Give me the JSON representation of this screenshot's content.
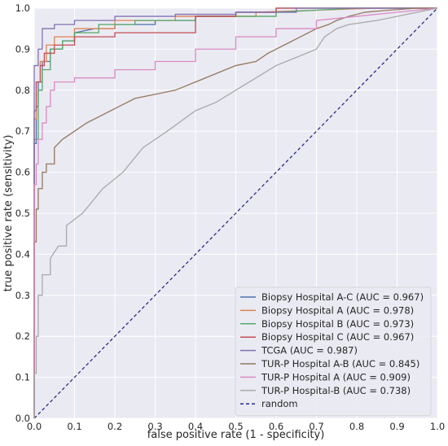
{
  "chart_data": {
    "type": "line",
    "title": "",
    "xlabel": "false positive rate (1 - specificity)",
    "ylabel": "true positive rate (sensitivity)",
    "xlim": [
      0.0,
      1.0
    ],
    "ylim": [
      0.0,
      1.0
    ],
    "xticks": [
      "0.0",
      "0.1",
      "0.2",
      "0.3",
      "0.4",
      "0.5",
      "0.6",
      "0.7",
      "0.8",
      "0.9",
      "1.0"
    ],
    "yticks": [
      "0.0",
      "0.1",
      "0.2",
      "0.3",
      "0.4",
      "0.5",
      "0.6",
      "0.7",
      "0.8",
      "0.9",
      "1.0"
    ],
    "grid": true,
    "legend_position": "lower-right",
    "background_color": "#eaeaf2",
    "series": [
      {
        "name": "Biopsy Hospital A-C (AUC = 0.967)",
        "color": "#4c72b0",
        "x": [
          0,
          0,
          0.005,
          0.005,
          0.01,
          0.01,
          0.02,
          0.02,
          0.04,
          0.04,
          0.07,
          0.07,
          0.1,
          0.1,
          0.15,
          0.2,
          0.2,
          0.3,
          0.3,
          0.4,
          0.4,
          0.5,
          0.5,
          0.6,
          0.6,
          0.7,
          0.85,
          1.0
        ],
        "y": [
          0,
          0.67,
          0.67,
          0.76,
          0.76,
          0.82,
          0.82,
          0.87,
          0.87,
          0.9,
          0.9,
          0.92,
          0.92,
          0.94,
          0.95,
          0.95,
          0.96,
          0.96,
          0.97,
          0.97,
          0.98,
          0.98,
          0.99,
          0.99,
          1.0,
          1.0,
          1.0,
          1.0
        ]
      },
      {
        "name": "Biopsy Hospital A (AUC = 0.978)",
        "color": "#dd8452",
        "x": [
          0,
          0,
          0.005,
          0.005,
          0.015,
          0.015,
          0.03,
          0.03,
          0.05,
          0.05,
          0.1,
          0.1,
          0.2,
          0.2,
          0.35,
          0.35,
          0.55,
          0.55,
          0.85,
          1.0
        ],
        "y": [
          0,
          0.73,
          0.73,
          0.82,
          0.82,
          0.87,
          0.87,
          0.91,
          0.91,
          0.93,
          0.93,
          0.95,
          0.95,
          0.97,
          0.97,
          0.98,
          0.98,
          0.99,
          1.0,
          1.0
        ]
      },
      {
        "name": "Biopsy Hospital B (AUC = 0.973)",
        "color": "#55a868",
        "x": [
          0,
          0,
          0.01,
          0.01,
          0.02,
          0.02,
          0.04,
          0.04,
          0.07,
          0.07,
          0.1,
          0.1,
          0.16,
          0.16,
          0.25,
          0.25,
          0.4,
          0.4,
          0.6,
          0.6,
          0.8,
          1.0
        ],
        "y": [
          0,
          0.68,
          0.68,
          0.8,
          0.8,
          0.85,
          0.85,
          0.9,
          0.9,
          0.92,
          0.92,
          0.94,
          0.94,
          0.96,
          0.96,
          0.97,
          0.97,
          0.98,
          0.98,
          0.99,
          1.0,
          1.0
        ]
      },
      {
        "name": "Biopsy Hospital C (AUC = 0.967)",
        "color": "#c44e52",
        "x": [
          0,
          0,
          0.005,
          0.005,
          0.015,
          0.015,
          0.025,
          0.025,
          0.05,
          0.05,
          0.1,
          0.1,
          0.2,
          0.2,
          0.4,
          0.4,
          0.5,
          0.5,
          0.6,
          0.6,
          1.0
        ],
        "y": [
          0,
          0.75,
          0.75,
          0.82,
          0.82,
          0.86,
          0.86,
          0.89,
          0.89,
          0.91,
          0.91,
          0.93,
          0.93,
          0.94,
          0.94,
          0.98,
          0.98,
          0.99,
          0.99,
          1.0,
          1.0
        ]
      },
      {
        "name": "TCGA (AUC = 0.987)",
        "color": "#8172b3",
        "x": [
          0,
          0,
          0.01,
          0.01,
          0.02,
          0.02,
          0.05,
          0.05,
          0.1,
          0.1,
          0.2,
          0.2,
          0.35,
          0.35,
          0.5,
          0.5,
          0.65,
          0.65,
          0.85,
          1.0
        ],
        "y": [
          0,
          0.86,
          0.86,
          0.9,
          0.9,
          0.95,
          0.95,
          0.96,
          0.96,
          0.97,
          0.97,
          0.98,
          0.98,
          0.985,
          0.985,
          0.99,
          0.99,
          1.0,
          1.0,
          1.0
        ]
      },
      {
        "name": "TUR-P Hospital A-B (AUC = 0.845)",
        "color": "#937860",
        "x": [
          0,
          0,
          0.005,
          0.005,
          0.01,
          0.01,
          0.02,
          0.02,
          0.03,
          0.03,
          0.05,
          0.05,
          0.07,
          0.1,
          0.13,
          0.17,
          0.21,
          0.25,
          0.3,
          0.35,
          0.4,
          0.45,
          0.5,
          0.55,
          0.58,
          0.62,
          0.66,
          0.7,
          0.73,
          0.75,
          0.78,
          0.82,
          0.88,
          0.95,
          1.0
        ],
        "y": [
          0,
          0.43,
          0.43,
          0.51,
          0.51,
          0.56,
          0.56,
          0.6,
          0.6,
          0.62,
          0.62,
          0.66,
          0.68,
          0.7,
          0.72,
          0.74,
          0.76,
          0.78,
          0.79,
          0.8,
          0.82,
          0.84,
          0.86,
          0.87,
          0.89,
          0.91,
          0.93,
          0.95,
          0.96,
          0.97,
          0.98,
          0.99,
          0.995,
          1.0,
          1.0
        ]
      },
      {
        "name": "TUR-P Hospital A (AUC = 0.909)",
        "color": "#da8bc3",
        "x": [
          0,
          0,
          0.005,
          0.005,
          0.01,
          0.01,
          0.02,
          0.02,
          0.03,
          0.03,
          0.04,
          0.04,
          0.05,
          0.05,
          0.1,
          0.1,
          0.2,
          0.2,
          0.3,
          0.3,
          0.4,
          0.4,
          0.5,
          0.5,
          0.6,
          0.6,
          0.7,
          0.7,
          0.8,
          0.9,
          1.0
        ],
        "y": [
          0,
          0.57,
          0.57,
          0.62,
          0.62,
          0.68,
          0.68,
          0.72,
          0.72,
          0.76,
          0.76,
          0.8,
          0.8,
          0.82,
          0.82,
          0.83,
          0.83,
          0.85,
          0.85,
          0.87,
          0.87,
          0.9,
          0.9,
          0.93,
          0.93,
          0.95,
          0.95,
          0.97,
          0.98,
          0.99,
          1.0
        ]
      },
      {
        "name": "TUR-P Hospital-B (AUC = 0.738)",
        "color": "#a9a9a9",
        "x": [
          0,
          0,
          0.005,
          0.005,
          0.01,
          0.01,
          0.02,
          0.02,
          0.04,
          0.04,
          0.06,
          0.08,
          0.08,
          0.12,
          0.17,
          0.22,
          0.27,
          0.33,
          0.4,
          0.45,
          0.5,
          0.55,
          0.6,
          0.65,
          0.7,
          0.72,
          0.75,
          0.78,
          0.85,
          0.9,
          1.0
        ],
        "y": [
          0,
          0.11,
          0.11,
          0.2,
          0.2,
          0.3,
          0.3,
          0.35,
          0.35,
          0.39,
          0.42,
          0.42,
          0.47,
          0.5,
          0.56,
          0.6,
          0.66,
          0.7,
          0.75,
          0.77,
          0.8,
          0.83,
          0.86,
          0.88,
          0.9,
          0.93,
          0.95,
          0.96,
          0.97,
          0.98,
          1.0
        ]
      }
    ],
    "reference_line": {
      "name": "random",
      "color": "#2b2b8c",
      "style": "dashed",
      "x": [
        0,
        1
      ],
      "y": [
        0,
        1
      ]
    }
  }
}
